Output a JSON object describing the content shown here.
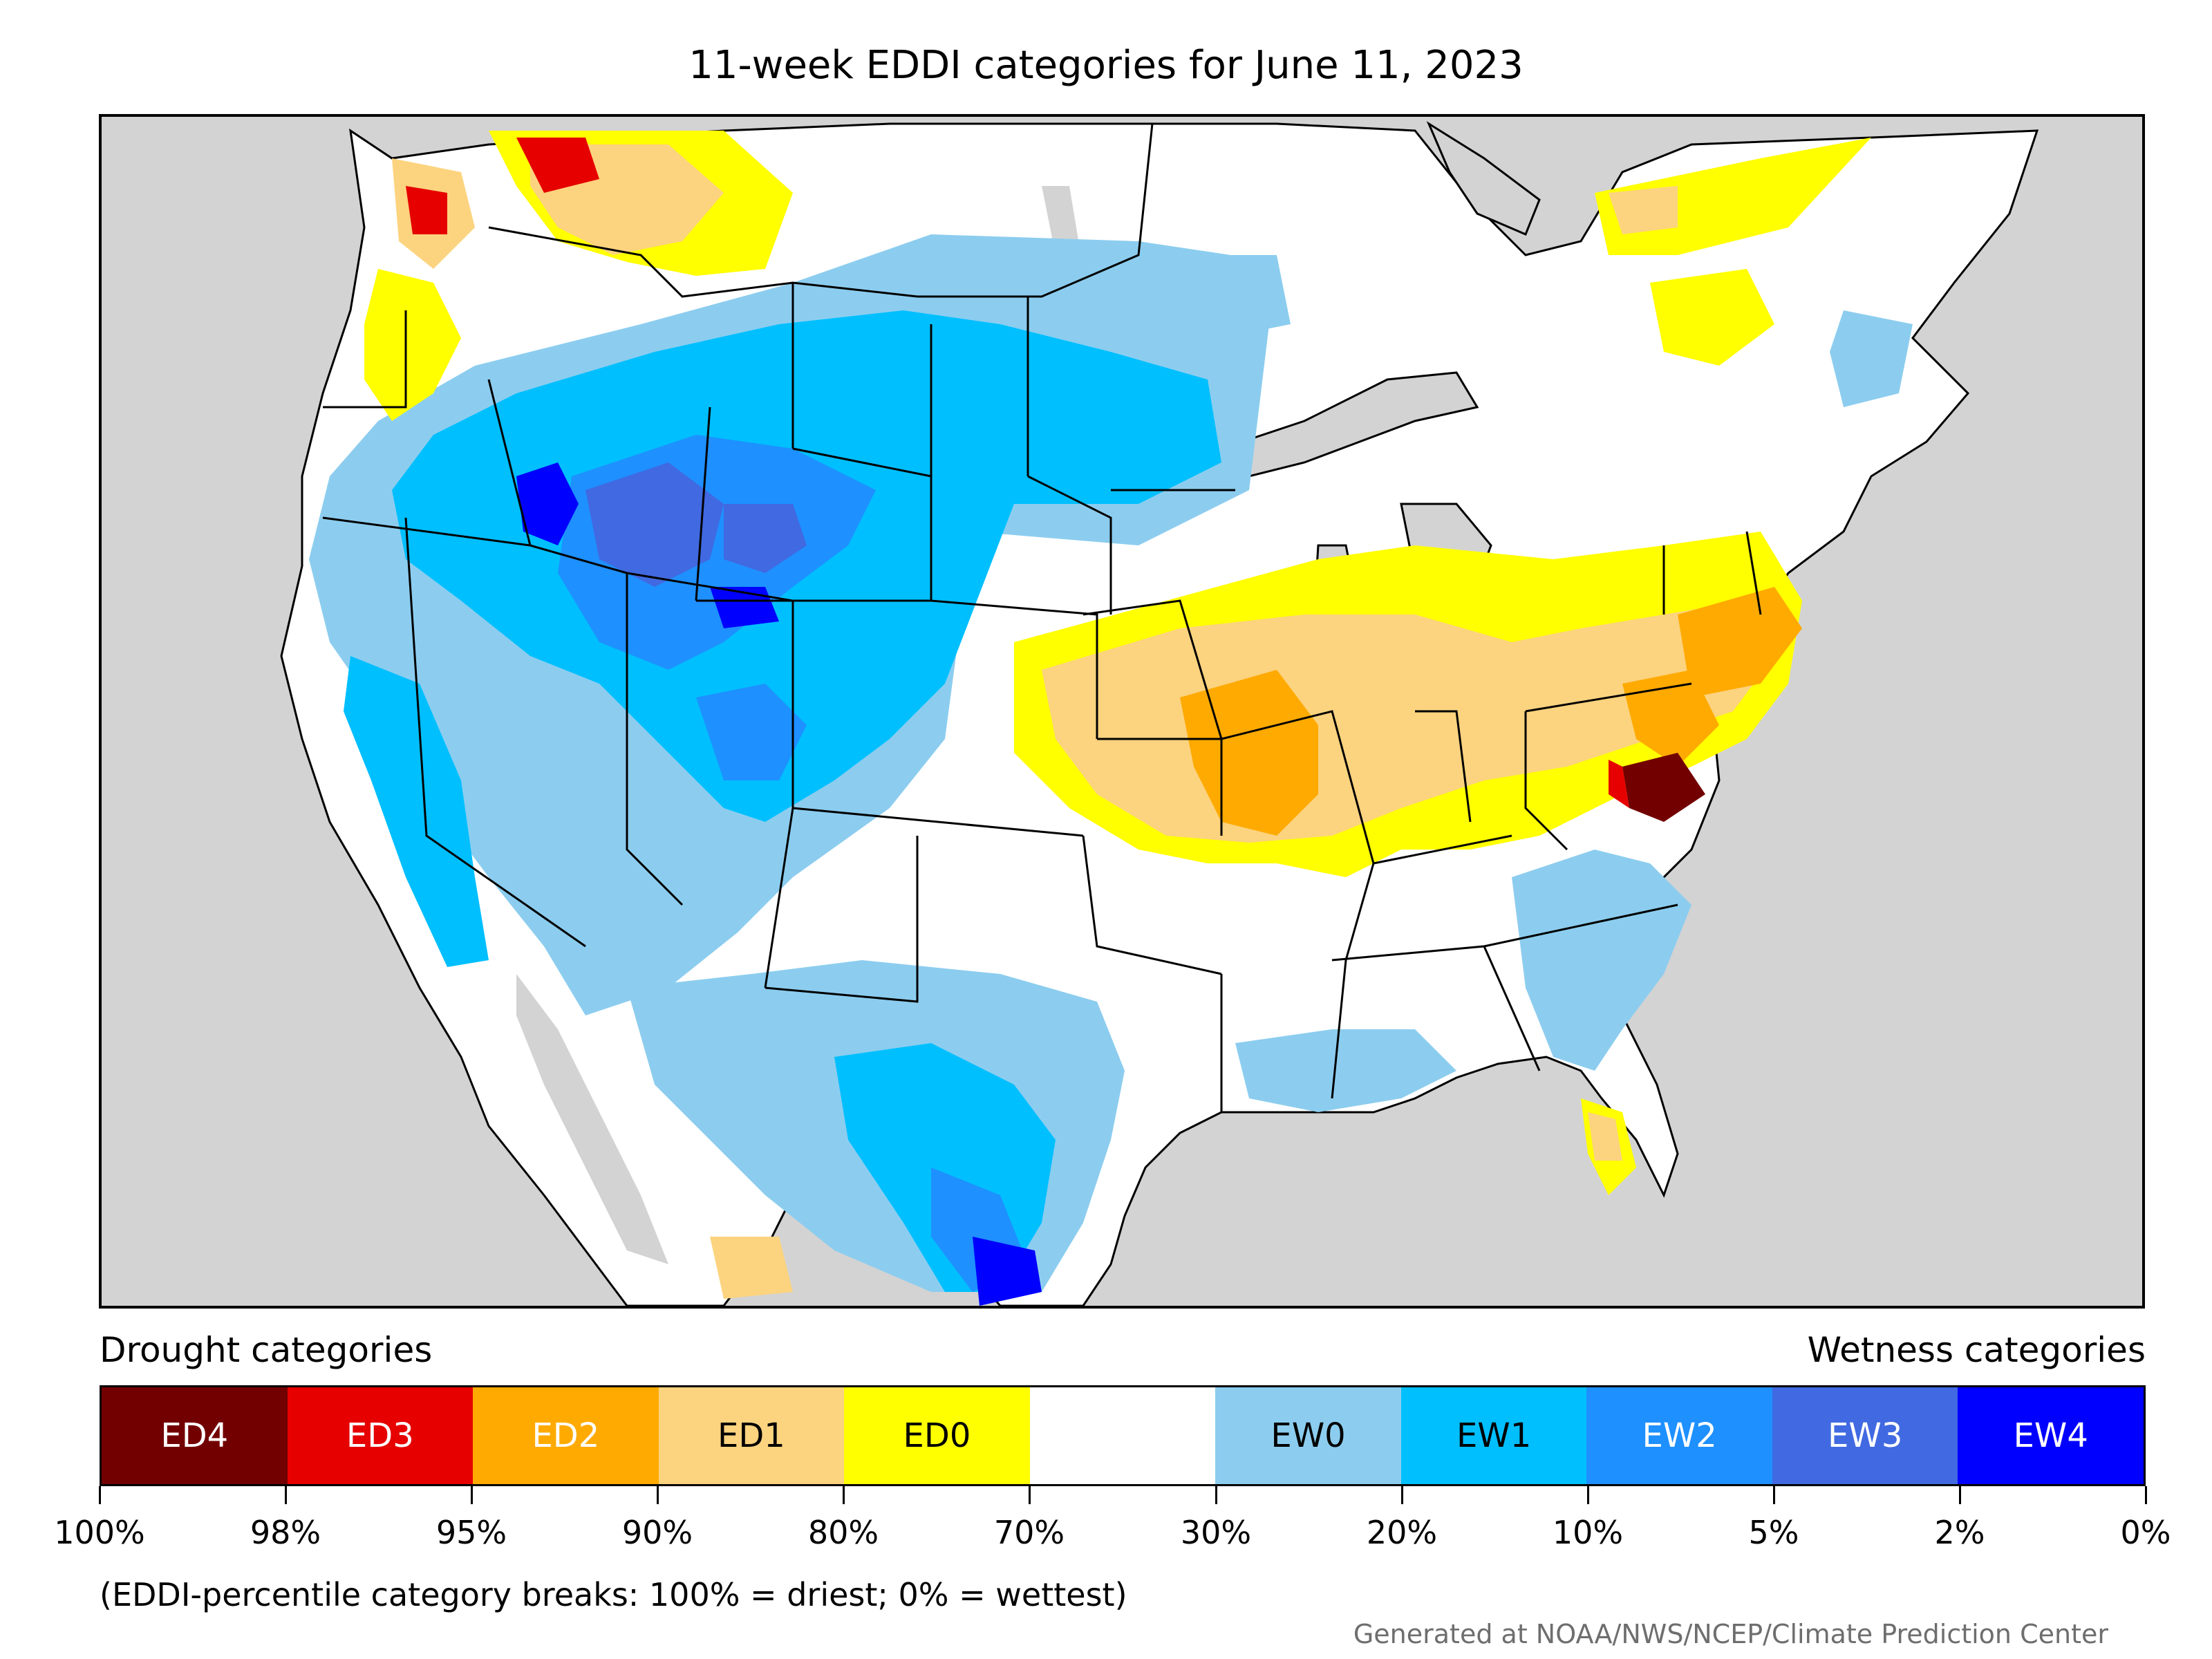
{
  "title": "11-week EDDI categories for June 11, 2023",
  "legend": {
    "drought_label": "Drought categories",
    "wetness_label": "Wetness categories",
    "categories": [
      {
        "label": "ED4",
        "color": "#730000",
        "text_color": "#ffffff"
      },
      {
        "label": "ED3",
        "color": "#e60000",
        "text_color": "#ffffff"
      },
      {
        "label": "ED2",
        "color": "#ffaa00",
        "text_color": "#ffffff"
      },
      {
        "label": "ED1",
        "color": "#fcd37f",
        "text_color": "#000000"
      },
      {
        "label": "ED0",
        "color": "#ffff00",
        "text_color": "#000000"
      },
      {
        "label": "",
        "color": "#ffffff",
        "text_color": "#000000"
      },
      {
        "label": "EW0",
        "color": "#8ccdef",
        "text_color": "#000000"
      },
      {
        "label": "EW1",
        "color": "#00bfff",
        "text_color": "#000000"
      },
      {
        "label": "EW2",
        "color": "#1e90ff",
        "text_color": "#ffffff"
      },
      {
        "label": "EW3",
        "color": "#4169e1",
        "text_color": "#ffffff"
      },
      {
        "label": "EW4",
        "color": "#0000ff",
        "text_color": "#ffffff"
      }
    ],
    "ticks": [
      "100%",
      "98%",
      "95%",
      "90%",
      "80%",
      "70%",
      "30%",
      "20%",
      "10%",
      "5%",
      "2%",
      "0%"
    ]
  },
  "note": "(EDDI-percentile category breaks: 100% = driest; 0% = wettest)",
  "credit": "Generated at NOAA/NWS/NCEP/Climate Prediction Center",
  "colors": {
    "water": "#d3d3d3",
    "land": "#ffffff",
    "border": "#000000"
  }
}
